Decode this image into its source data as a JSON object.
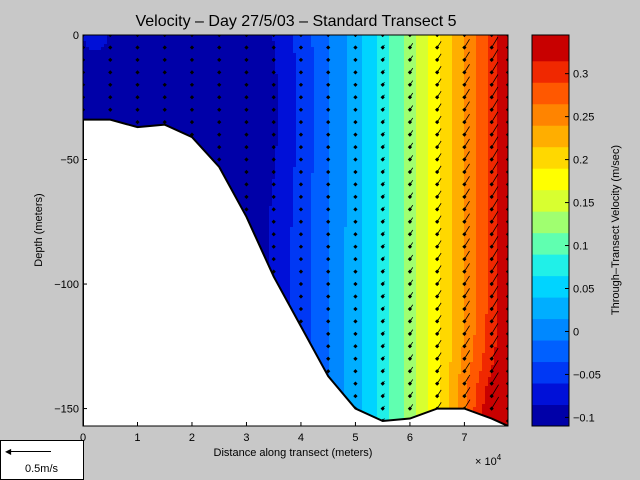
{
  "chart_data": {
    "type": "contour",
    "title": "Velocity – Day 27/5/03 – Standard Transect 5",
    "xlabel": "Distance along transect (meters)",
    "ylabel": "Depth (meters)",
    "x_exponent_label": "× 10",
    "x_exponent_power": "4",
    "xlim": [
      0,
      78000
    ],
    "ylim": [
      -157,
      0
    ],
    "x_ticks": [
      0,
      10000,
      20000,
      30000,
      40000,
      50000,
      60000,
      70000
    ],
    "x_tick_labels": [
      "0",
      "1",
      "2",
      "3",
      "4",
      "5",
      "6",
      "7"
    ],
    "y_ticks": [
      0,
      -50,
      -100,
      -150
    ],
    "y_tick_labels": [
      "0",
      "−50",
      "−100",
      "−150"
    ],
    "colorbar": {
      "label": "Through–Transect Velocity (m/sec)",
      "range": [
        -0.11,
        0.345
      ],
      "ticks": [
        0.3,
        0.25,
        0.2,
        0.15,
        0.1,
        0.05,
        0,
        -0.05,
        -0.1
      ],
      "tick_labels": [
        "0.3",
        "0.25",
        "0.2",
        "0.15",
        "0.1",
        "0.05",
        "0",
        "−0.05",
        "−0.1"
      ],
      "levels": [
        -0.11,
        -0.085,
        -0.06,
        -0.035,
        -0.01,
        0.015,
        0.04,
        0.065,
        0.09,
        0.115,
        0.14,
        0.165,
        0.19,
        0.215,
        0.24,
        0.265,
        0.29,
        0.315,
        0.345
      ],
      "colors": [
        "#0000a8",
        "#0010d8",
        "#0038f4",
        "#0060ff",
        "#0088ff",
        "#00aeff",
        "#00d4ff",
        "#20f0e8",
        "#60ffb0",
        "#a0ff70",
        "#d8ff30",
        "#ffff00",
        "#ffd800",
        "#ffae00",
        "#ff8400",
        "#ff5800",
        "#f02800",
        "#c80000"
      ]
    },
    "bottom_profile": {
      "x": [
        0,
        5000,
        10000,
        15000,
        20000,
        25000,
        30000,
        35000,
        40000,
        45000,
        50000,
        55000,
        60000,
        65000,
        70000,
        75000,
        78000
      ],
      "depth": [
        -34,
        -34,
        -37,
        -36,
        -41,
        -53,
        -73,
        -97,
        -117,
        -137,
        -150,
        -155,
        -154,
        -150,
        -150,
        -154,
        -157
      ]
    },
    "profile_stations_x": [
      0,
      5000,
      10000,
      15000,
      20000,
      25000,
      30000,
      35000,
      40000,
      45000,
      50000,
      55000,
      60000,
      65000,
      70000,
      75000,
      78000
    ],
    "sample_depth_spacing": 5,
    "vector_scale": {
      "label": "0.5m/s",
      "speed": 0.5
    },
    "grid": false
  }
}
